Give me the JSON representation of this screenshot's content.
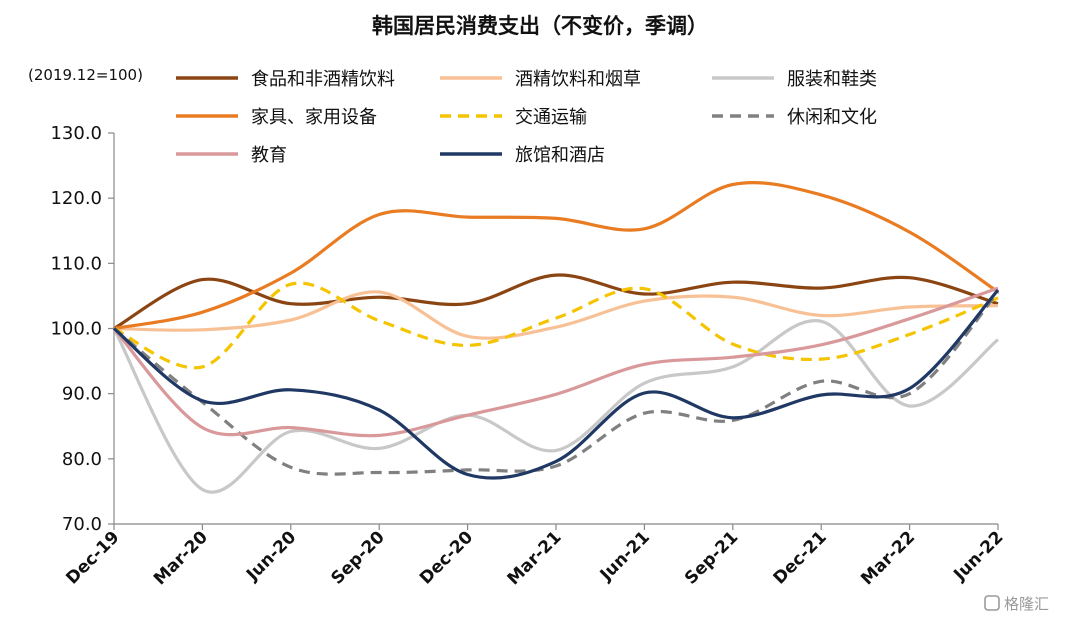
{
  "watermark": "格隆汇",
  "chart_data": {
    "type": "line",
    "title": "韩国居民消费支出（不变价，季调）",
    "base_note": "(2019.12=100)",
    "categories": [
      "Dec-19",
      "Mar-20",
      "Jun-20",
      "Sep-20",
      "Dec-20",
      "Mar-21",
      "Jun-21",
      "Sep-21",
      "Dec-21",
      "Mar-22",
      "Jun-22"
    ],
    "ylim": [
      70,
      130
    ],
    "yticks": [
      "70.0",
      "80.0",
      "90.0",
      "100.0",
      "110.0",
      "120.0",
      "130.0"
    ],
    "grid": false,
    "legend_position": "top",
    "series": [
      {
        "name": "食品和非酒精饮料",
        "color": "#8B4513",
        "dash": "solid",
        "values": [
          100,
          107.5,
          103.8,
          104.8,
          103.8,
          108.2,
          105.3,
          107.1,
          106.2,
          107.8,
          103.8
        ]
      },
      {
        "name": "酒精饮料和烟草",
        "color": "#F8C195",
        "dash": "solid",
        "values": [
          100,
          99.8,
          101.3,
          105.6,
          98.8,
          100.2,
          104.2,
          104.8,
          102.0,
          103.3,
          103.5
        ]
      },
      {
        "name": "服装和鞋类",
        "color": "#C8C8C8",
        "dash": "solid",
        "values": [
          100,
          75.3,
          84.2,
          81.6,
          86.7,
          81.3,
          91.6,
          94.1,
          101.1,
          88.1,
          98.3
        ]
      },
      {
        "name": "家具、家用设备",
        "color": "#E97C22",
        "dash": "solid",
        "values": [
          100,
          102.5,
          108.5,
          117.5,
          117.1,
          116.9,
          115.3,
          122.1,
          120.5,
          114.8,
          105.6
        ]
      },
      {
        "name": "交通运输",
        "color": "#F5C400",
        "dash": "dashed",
        "values": [
          100,
          94.1,
          106.8,
          101.2,
          97.4,
          101.6,
          106.1,
          97.6,
          95.3,
          99.1,
          104.7
        ]
      },
      {
        "name": "休闲和文化",
        "color": "#808080",
        "dash": "dashed",
        "values": [
          100,
          88.7,
          78.7,
          77.9,
          78.3,
          78.9,
          87.0,
          85.9,
          91.9,
          90.0,
          105.6
        ]
      },
      {
        "name": "教育",
        "color": "#D9999B",
        "dash": "solid",
        "values": [
          100,
          84.8,
          84.8,
          83.6,
          86.7,
          89.9,
          94.5,
          95.6,
          97.5,
          101.5,
          106.2
        ]
      },
      {
        "name": "旅馆和酒店",
        "color": "#1F3864",
        "dash": "solid",
        "values": [
          100,
          88.9,
          90.6,
          87.5,
          77.6,
          79.6,
          90.1,
          86.3,
          89.8,
          90.8,
          105.9
        ]
      }
    ]
  }
}
